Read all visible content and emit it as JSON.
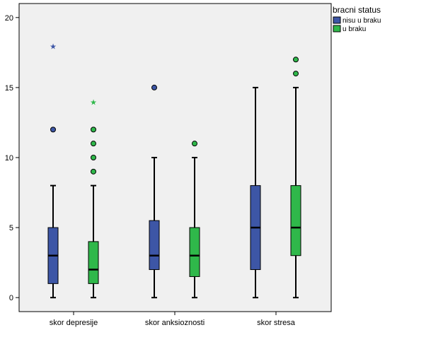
{
  "chart_data": {
    "type": "boxplot",
    "title": "",
    "xlabel": "",
    "ylabel": "",
    "ylim": [
      -1,
      21
    ],
    "yticks": [
      0,
      5,
      10,
      15,
      20
    ],
    "grid": false,
    "legend": {
      "title": "bracni status",
      "placement": "top-right"
    },
    "colors": {
      "plot_background": "#f0f0f0",
      "series_1": "#3d56a6",
      "series_2": "#2fb84a"
    },
    "categories": [
      "skor depresije",
      "skor anksioznosti",
      "skor stresa"
    ],
    "series": [
      {
        "name": "nisu u braku",
        "color": "#3d56a6",
        "boxes": [
          {
            "min": 0,
            "q1": 1,
            "median": 3,
            "q3": 5,
            "max": 8,
            "outliers": [
              12
            ],
            "extremes": [
              18
            ]
          },
          {
            "min": 0,
            "q1": 2,
            "median": 3,
            "q3": 5.5,
            "max": 10,
            "outliers": [
              15
            ],
            "extremes": []
          },
          {
            "min": 0,
            "q1": 2,
            "median": 5,
            "q3": 8,
            "max": 15,
            "outliers": [],
            "extremes": []
          }
        ]
      },
      {
        "name": "u braku",
        "color": "#2fb84a",
        "boxes": [
          {
            "min": 0,
            "q1": 1,
            "median": 2,
            "q3": 4,
            "max": 8,
            "outliers": [
              9,
              10,
              11,
              12
            ],
            "extremes": [
              14
            ]
          },
          {
            "min": 0,
            "q1": 1.5,
            "median": 3,
            "q3": 5,
            "max": 10,
            "outliers": [
              11
            ],
            "extremes": []
          },
          {
            "min": 0,
            "q1": 3,
            "median": 5,
            "q3": 8,
            "max": 15,
            "outliers": [
              16,
              17
            ],
            "extremes": []
          }
        ]
      }
    ]
  }
}
